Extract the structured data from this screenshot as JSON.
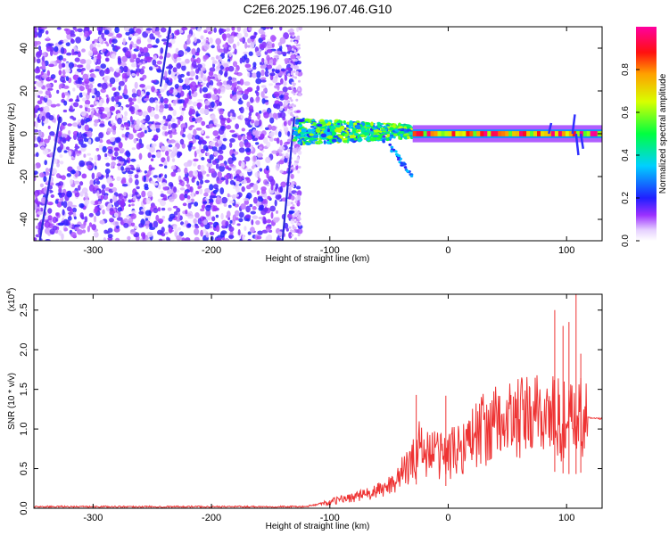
{
  "title": "C2E6.2025.196.07.46.G10",
  "chart_data": [
    {
      "type": "heatmap",
      "xlabel": "Height of straight line (km)",
      "ylabel": "Frequency (Hz)",
      "xlim": [
        -350,
        130
      ],
      "ylim": [
        -50,
        50
      ],
      "xticks": [
        -300,
        -200,
        -100,
        0,
        100
      ],
      "yticks": [
        -40,
        -20,
        0,
        20,
        40
      ],
      "colorbar": {
        "label": "Normalized spectral amplitude",
        "range": [
          0,
          1
        ],
        "ticks": [
          0.0,
          0.2,
          0.4,
          0.6,
          0.8
        ],
        "colormap": "rainbow (white-lavender-purple-blue-cyan-green-yellow-orange-red-magenta)"
      },
      "regions": [
        {
          "x_range": [
            -350,
            -135
          ],
          "freq_range": [
            -50,
            50
          ],
          "amplitude": 0.12,
          "description": "broadband noise"
        },
        {
          "x_range": [
            -130,
            -30
          ],
          "freq_range": [
            -5,
            7
          ],
          "amplitude": 0.45
        },
        {
          "x_range": [
            -30,
            130
          ],
          "freq_range": [
            -1.5,
            1.5
          ],
          "amplitude": 0.9
        }
      ],
      "streaks": [
        {
          "x": [
            -345,
            -328
          ],
          "freq": [
            -50,
            8
          ]
        },
        {
          "x": [
            -243,
            -235
          ],
          "freq": [
            22,
            50
          ]
        },
        {
          "x": [
            -140,
            -130
          ],
          "freq": [
            -50,
            8
          ]
        }
      ],
      "grid": false
    },
    {
      "type": "line",
      "xlabel": "Height of straight line (km)",
      "ylabel": "SNR (10 * v/v)",
      "y_multiplier": "(x10^4)",
      "y_multiplier_base": "(x10",
      "y_multiplier_exp": "4",
      "y_multiplier_close": ")",
      "xlim": [
        -350,
        130
      ],
      "ylim": [
        0,
        2.7
      ],
      "xticks": [
        -300,
        -200,
        -100,
        0,
        100
      ],
      "yticks": [
        0.0,
        0.5,
        1.0,
        1.5,
        2.0,
        2.5
      ],
      "ytick_labels": [
        "0.0",
        "0.5",
        "1.0",
        "1.5",
        "2.0",
        "2.5"
      ],
      "series": [
        {
          "color": "#ee3333",
          "x": [
            -350,
            -300,
            -250,
            -200,
            -150,
            -120,
            -100,
            -90,
            -80,
            -70,
            -60,
            -50,
            -40,
            -30,
            -25,
            -20,
            -10,
            0,
            10,
            20,
            30,
            40,
            50,
            60,
            70,
            80,
            85,
            90,
            95,
            100,
            105,
            110,
            115,
            120,
            130
          ],
          "y": [
            0.02,
            0.02,
            0.02,
            0.02,
            0.02,
            0.02,
            0.08,
            0.12,
            0.15,
            0.18,
            0.22,
            0.3,
            0.45,
            0.6,
            0.85,
            0.75,
            0.72,
            0.7,
            0.8,
            0.95,
            1.05,
            1.1,
            1.15,
            1.18,
            1.2,
            1.2,
            1.2,
            1.15,
            1.1,
            1.1,
            1.05,
            1.1,
            1.15,
            1.14,
            1.13
          ]
        }
      ],
      "grid": false
    }
  ]
}
